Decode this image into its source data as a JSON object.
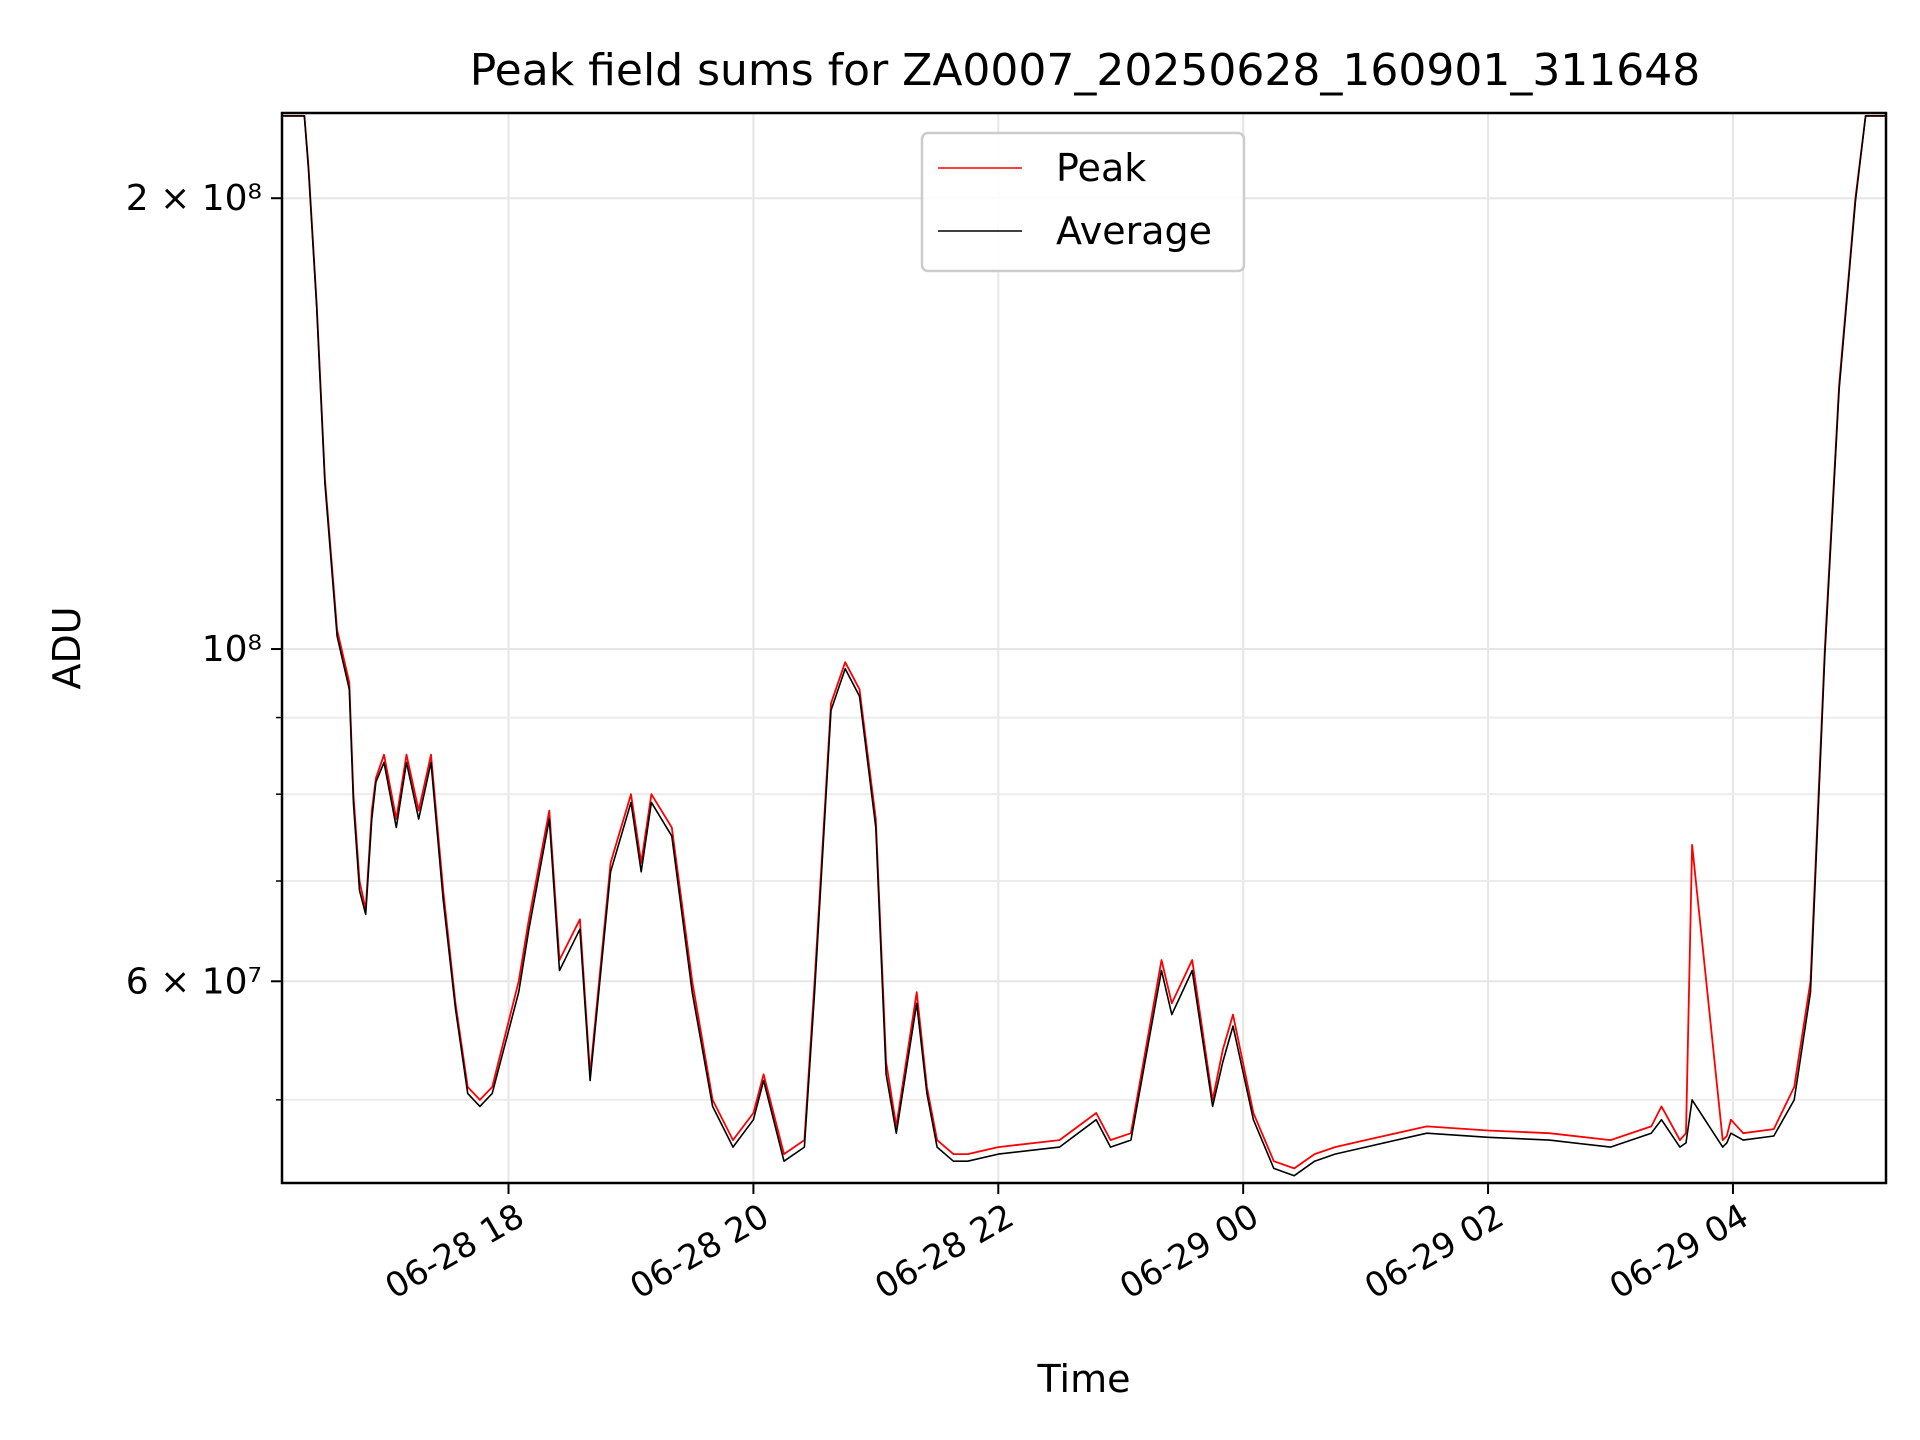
{
  "chart_data": {
    "type": "line",
    "title": "Peak field sums for ZA0007_20250628_160901_311648",
    "xlabel": "Time",
    "ylabel": "ADU",
    "x_unit": "datetime",
    "xlim": [
      "2025-06-28 16:09",
      "2025-06-29 05:15"
    ],
    "ylim": [
      44000000,
      228000000
    ],
    "yscale": "log",
    "grid": true,
    "legend_position": "top-center",
    "x_ticks": [
      {
        "value": "2025-06-28 18:00",
        "label": "06-28 18"
      },
      {
        "value": "2025-06-28 20:00",
        "label": "06-28 20"
      },
      {
        "value": "2025-06-28 22:00",
        "label": "06-28 22"
      },
      {
        "value": "2025-06-29 00:00",
        "label": "06-29 00"
      },
      {
        "value": "2025-06-29 02:00",
        "label": "06-29 02"
      },
      {
        "value": "2025-06-29 04:00",
        "label": "06-29 04"
      }
    ],
    "y_major_ticks": [
      {
        "value": 200000000,
        "label": "2 × 10⁸"
      },
      {
        "value": 100000000,
        "label": "10⁸"
      },
      {
        "value": 60000000,
        "label": "6 × 10⁷"
      }
    ],
    "y_minor_ticks": [
      50000000,
      70000000,
      80000000,
      90000000
    ],
    "series": [
      {
        "name": "Peak",
        "color": "#ff0000",
        "x": [
          "2025-06-28 16:09",
          "2025-06-28 16:20",
          "2025-06-28 16:22",
          "2025-06-28 16:26",
          "2025-06-28 16:30",
          "2025-06-28 16:36",
          "2025-06-28 16:42",
          "2025-06-28 16:44",
          "2025-06-28 16:47",
          "2025-06-28 16:50",
          "2025-06-28 16:53",
          "2025-06-28 16:55",
          "2025-06-28 16:59",
          "2025-06-28 17:05",
          "2025-06-28 17:10",
          "2025-06-28 17:16",
          "2025-06-28 17:22",
          "2025-06-28 17:28",
          "2025-06-28 17:34",
          "2025-06-28 17:40",
          "2025-06-28 17:46",
          "2025-06-28 17:52",
          "2025-06-28 18:05",
          "2025-06-28 18:10",
          "2025-06-28 18:20",
          "2025-06-28 18:25",
          "2025-06-28 18:35",
          "2025-06-28 18:40",
          "2025-06-28 18:50",
          "2025-06-28 19:00",
          "2025-06-28 19:05",
          "2025-06-28 19:10",
          "2025-06-28 19:20",
          "2025-06-28 19:30",
          "2025-06-28 19:40",
          "2025-06-28 19:50",
          "2025-06-28 20:00",
          "2025-06-28 20:05",
          "2025-06-28 20:15",
          "2025-06-28 20:25",
          "2025-06-28 20:30",
          "2025-06-28 20:38",
          "2025-06-28 20:45",
          "2025-06-28 20:52",
          "2025-06-28 21:00",
          "2025-06-28 21:05",
          "2025-06-28 21:10",
          "2025-06-28 21:20",
          "2025-06-28 21:25",
          "2025-06-28 21:30",
          "2025-06-28 21:38",
          "2025-06-28 21:45",
          "2025-06-28 22:00",
          "2025-06-28 22:30",
          "2025-06-28 22:48",
          "2025-06-28 22:55",
          "2025-06-28 23:05",
          "2025-06-28 23:20",
          "2025-06-28 23:25",
          "2025-06-28 23:35",
          "2025-06-28 23:45",
          "2025-06-28 23:50",
          "2025-06-28 23:55",
          "2025-06-29 00:05",
          "2025-06-29 00:15",
          "2025-06-29 00:25",
          "2025-06-29 00:35",
          "2025-06-29 00:45",
          "2025-06-29 01:00",
          "2025-06-29 01:30",
          "2025-06-29 02:00",
          "2025-06-29 02:30",
          "2025-06-29 03:00",
          "2025-06-29 03:20",
          "2025-06-29 03:25",
          "2025-06-29 03:34",
          "2025-06-29 03:37",
          "2025-06-29 03:40",
          "2025-06-29 03:55",
          "2025-06-29 03:57",
          "2025-06-29 03:59",
          "2025-06-29 04:05",
          "2025-06-29 04:20",
          "2025-06-29 04:30",
          "2025-06-29 04:38",
          "2025-06-29 04:45",
          "2025-06-29 04:52",
          "2025-06-29 05:00",
          "2025-06-29 05:05",
          "2025-06-29 05:15"
        ],
        "values": [
          227000000,
          227000000,
          210000000,
          170000000,
          130000000,
          103000000,
          95000000,
          80000000,
          70000000,
          67000000,
          78000000,
          82000000,
          85000000,
          77000000,
          85000000,
          78000000,
          85000000,
          69000000,
          58000000,
          51000000,
          50000000,
          51000000,
          60000000,
          66000000,
          78000000,
          62000000,
          66000000,
          52000000,
          72000000,
          80000000,
          72000000,
          80000000,
          76000000,
          60000000,
          50000000,
          47000000,
          49000000,
          52000000,
          46000000,
          47000000,
          60000000,
          92000000,
          98000000,
          94000000,
          77000000,
          53000000,
          48000000,
          59000000,
          51000000,
          47000000,
          46000000,
          46000000,
          46500000,
          47000000,
          49000000,
          47000000,
          47500000,
          62000000,
          58000000,
          62000000,
          50000000,
          54000000,
          57000000,
          49000000,
          45500000,
          45000000,
          46000000,
          46500000,
          47000000,
          48000000,
          47700000,
          47500000,
          47000000,
          48000000,
          49500000,
          47000000,
          47500000,
          74000000,
          47000000,
          47300000,
          48500000,
          47500000,
          47800000,
          51000000,
          60000000,
          100000000,
          150000000,
          200000000,
          227000000,
          227000000
        ]
      },
      {
        "name": "Average",
        "color": "#000000",
        "x": [
          "2025-06-28 16:09",
          "2025-06-28 16:20",
          "2025-06-28 16:22",
          "2025-06-28 16:26",
          "2025-06-28 16:30",
          "2025-06-28 16:36",
          "2025-06-28 16:42",
          "2025-06-28 16:44",
          "2025-06-28 16:47",
          "2025-06-28 16:50",
          "2025-06-28 16:53",
          "2025-06-28 16:55",
          "2025-06-28 16:59",
          "2025-06-28 17:05",
          "2025-06-28 17:10",
          "2025-06-28 17:16",
          "2025-06-28 17:22",
          "2025-06-28 17:28",
          "2025-06-28 17:34",
          "2025-06-28 17:40",
          "2025-06-28 17:46",
          "2025-06-28 17:52",
          "2025-06-28 18:05",
          "2025-06-28 18:10",
          "2025-06-28 18:20",
          "2025-06-28 18:25",
          "2025-06-28 18:35",
          "2025-06-28 18:40",
          "2025-06-28 18:50",
          "2025-06-28 19:00",
          "2025-06-28 19:05",
          "2025-06-28 19:10",
          "2025-06-28 19:20",
          "2025-06-28 19:30",
          "2025-06-28 19:40",
          "2025-06-28 19:50",
          "2025-06-28 20:00",
          "2025-06-28 20:05",
          "2025-06-28 20:15",
          "2025-06-28 20:25",
          "2025-06-28 20:30",
          "2025-06-28 20:38",
          "2025-06-28 20:45",
          "2025-06-28 20:52",
          "2025-06-28 21:00",
          "2025-06-28 21:05",
          "2025-06-28 21:10",
          "2025-06-28 21:20",
          "2025-06-28 21:25",
          "2025-06-28 21:30",
          "2025-06-28 21:38",
          "2025-06-28 21:45",
          "2025-06-28 22:00",
          "2025-06-28 22:30",
          "2025-06-28 22:48",
          "2025-06-28 22:55",
          "2025-06-28 23:05",
          "2025-06-28 23:20",
          "2025-06-28 23:25",
          "2025-06-28 23:35",
          "2025-06-28 23:45",
          "2025-06-28 23:50",
          "2025-06-28 23:55",
          "2025-06-29 00:05",
          "2025-06-29 00:15",
          "2025-06-29 00:25",
          "2025-06-29 00:35",
          "2025-06-29 00:45",
          "2025-06-29 01:00",
          "2025-06-29 01:30",
          "2025-06-29 02:00",
          "2025-06-29 02:30",
          "2025-06-29 03:00",
          "2025-06-29 03:20",
          "2025-06-29 03:25",
          "2025-06-29 03:34",
          "2025-06-29 03:37",
          "2025-06-29 03:40",
          "2025-06-29 03:55",
          "2025-06-29 03:57",
          "2025-06-29 03:59",
          "2025-06-29 04:05",
          "2025-06-29 04:20",
          "2025-06-29 04:30",
          "2025-06-29 04:38",
          "2025-06-29 04:45",
          "2025-06-29 04:52",
          "2025-06-29 05:00",
          "2025-06-29 05:05",
          "2025-06-29 05:15"
        ],
        "values": [
          227000000,
          227000000,
          209000000,
          169000000,
          129000000,
          102000000,
          94000000,
          79000000,
          69000000,
          66500000,
          77000000,
          81500000,
          84000000,
          76000000,
          84000000,
          77000000,
          84000000,
          68000000,
          57500000,
          50500000,
          49500000,
          50500000,
          59000000,
          65000000,
          77000000,
          61000000,
          65000000,
          51500000,
          71000000,
          79000000,
          71000000,
          79000000,
          75000000,
          59000000,
          49500000,
          46500000,
          48500000,
          51500000,
          45500000,
          46500000,
          59000000,
          91000000,
          97000000,
          93000000,
          76000000,
          52000000,
          47500000,
          58000000,
          50500000,
          46500000,
          45500000,
          45500000,
          46000000,
          46500000,
          48500000,
          46500000,
          47000000,
          61000000,
          57000000,
          61000000,
          49500000,
          53000000,
          56000000,
          48500000,
          45000000,
          44500000,
          45500000,
          46000000,
          46500000,
          47500000,
          47200000,
          47000000,
          46500000,
          47500000,
          48500000,
          46500000,
          46800000,
          50000000,
          46500000,
          46800000,
          47500000,
          47000000,
          47300000,
          50000000,
          59000000,
          99000000,
          149000000,
          199000000,
          227000000,
          227000000
        ]
      }
    ]
  }
}
